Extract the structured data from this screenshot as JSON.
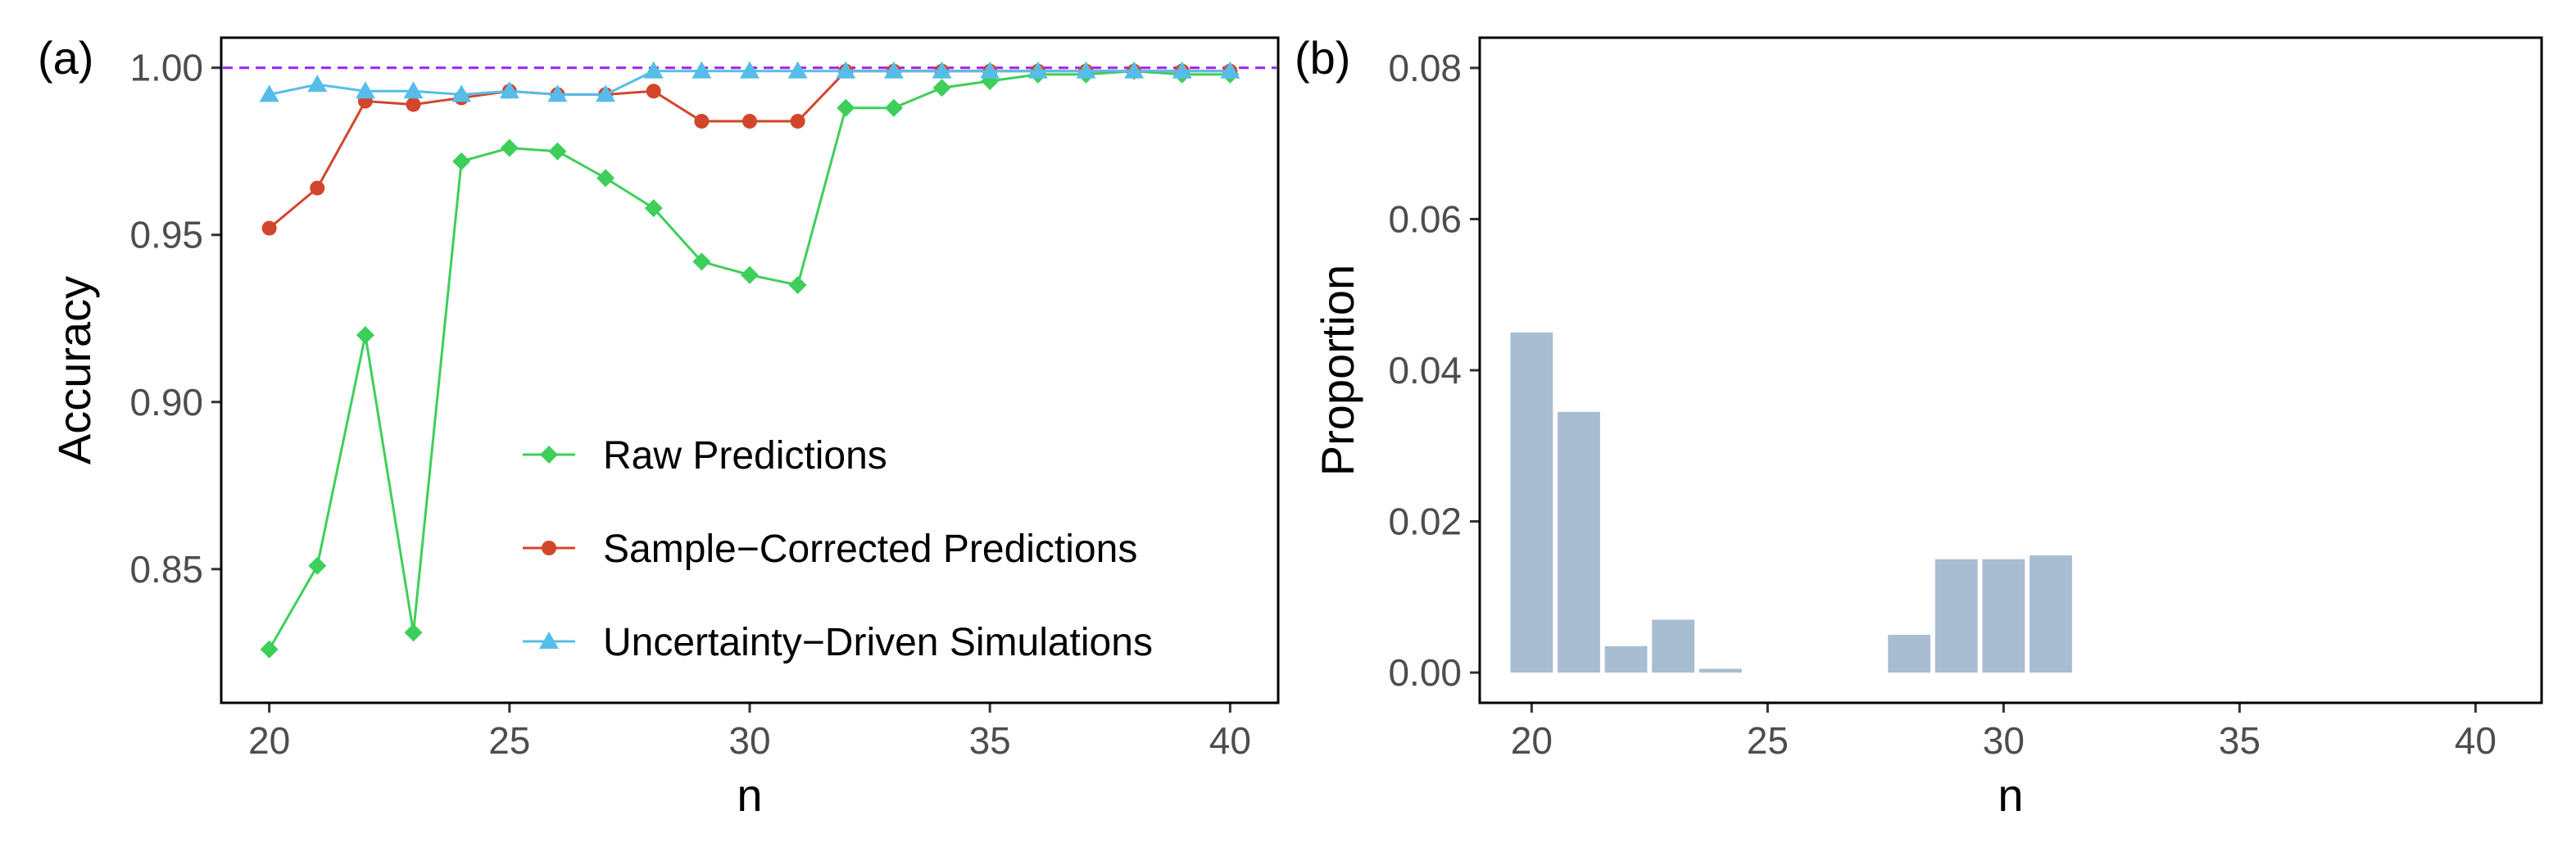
{
  "chart_data": [
    {
      "panel_label": "(a)",
      "type": "line",
      "xlabel": "n",
      "ylabel": "Accuracy",
      "xlim": [
        19,
        41
      ],
      "ylim": [
        0.81,
        1.009
      ],
      "xticks": [
        20,
        25,
        30,
        35,
        40
      ],
      "xtick_labels": [
        "20",
        "25",
        "30",
        "35",
        "40"
      ],
      "yticks": [
        0.85,
        0.9,
        0.95,
        1.0
      ],
      "ytick_labels": [
        "0.85",
        "0.90",
        "0.95",
        "1.00"
      ],
      "reference_line": {
        "y": 1.0,
        "color": "#a020f0",
        "style": "dashed"
      },
      "legend_position": "bottom-right",
      "x": [
        20,
        21,
        22,
        23,
        24,
        25,
        26,
        27,
        28,
        29,
        30,
        31,
        32,
        33,
        34,
        35,
        36,
        37,
        38,
        39,
        40
      ],
      "series": [
        {
          "name": "Raw Predictions",
          "color": "#3ecf5a",
          "marker": "diamond",
          "values": [
            0.826,
            0.851,
            0.92,
            0.831,
            0.972,
            0.976,
            0.975,
            0.967,
            0.958,
            0.942,
            0.938,
            0.935,
            0.988,
            0.988,
            0.994,
            0.996,
            0.998,
            0.998,
            0.999,
            0.998,
            0.998
          ]
        },
        {
          "name": "Sample−Corrected Predictions",
          "color": "#d2462c",
          "marker": "circle",
          "values": [
            0.952,
            0.964,
            0.99,
            0.989,
            0.991,
            0.993,
            0.992,
            0.992,
            0.993,
            0.984,
            0.984,
            0.984,
            0.999,
            0.999,
            0.999,
            0.999,
            0.999,
            0.999,
            0.999,
            0.999,
            0.999
          ]
        },
        {
          "name": "Uncertainty−Driven Simulations",
          "color": "#56bdea",
          "marker": "triangle",
          "values": [
            0.992,
            0.995,
            0.993,
            0.993,
            0.992,
            0.993,
            0.992,
            0.992,
            0.999,
            0.999,
            0.999,
            0.999,
            0.999,
            0.999,
            0.999,
            0.999,
            0.999,
            0.999,
            0.999,
            0.999,
            0.999
          ]
        }
      ]
    },
    {
      "panel_label": "(b)",
      "type": "bar",
      "xlabel": "n",
      "ylabel": "Proportion",
      "xlim": [
        18.9,
        41.4
      ],
      "ylim": [
        -0.004,
        0.084
      ],
      "xticks": [
        20,
        25,
        30,
        35,
        40
      ],
      "xtick_labels": [
        "20",
        "25",
        "30",
        "35",
        "40"
      ],
      "yticks": [
        0.0,
        0.02,
        0.04,
        0.06,
        0.08
      ],
      "ytick_labels": [
        "0.00",
        "0.02",
        "0.04",
        "0.06",
        "0.08"
      ],
      "bar_color": "#a8bdd1",
      "categories": [
        20,
        21,
        22,
        23,
        24,
        25,
        26,
        27,
        28,
        29,
        30,
        31,
        32,
        33,
        34,
        35,
        36,
        37,
        38,
        39,
        40
      ],
      "values": [
        0.045,
        0.0345,
        0.0035,
        0.007,
        0.0005,
        0,
        0,
        0,
        0.005,
        0.015,
        0.015,
        0.0155,
        0,
        0,
        0,
        0,
        0,
        0,
        0,
        0,
        0
      ]
    }
  ]
}
